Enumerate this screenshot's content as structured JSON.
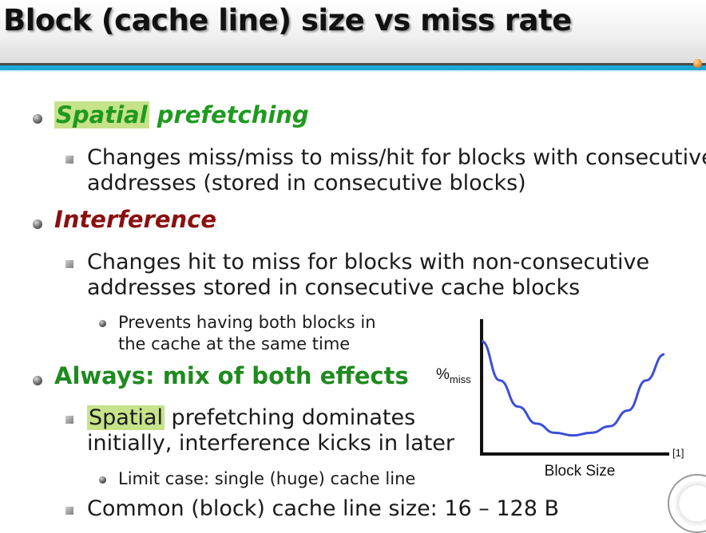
{
  "title": "Block (cache line) size vs miss rate",
  "items": {
    "spatial_highlight": "Spatial",
    "spatial_rest": " prefetching",
    "spatial_sub_line1": "Changes miss/miss to miss/hit for blocks with consecutive",
    "spatial_sub_line2": "addresses (stored in consecutive blocks)",
    "interference": "Interference",
    "interference_sub_line1": "Changes hit to miss for blocks with non-consecutive",
    "interference_sub_line2": "addresses stored in consecutive cache blocks",
    "interference_sub_sub_line1": "Prevents having both blocks in",
    "interference_sub_sub_line2": "the cache at the same time",
    "always": "Always: mix of both effects",
    "always_sub_highlight": "Spatial",
    "always_sub_line1_rest": " prefetching dominates",
    "always_sub_line2": "initially, interference kicks in later",
    "always_sub_sub": "Limit case: single (huge) cache line",
    "common": "Common (block) cache line size: 16 – 128 B"
  },
  "colors": {
    "green": "#1f9a1f",
    "dark_red": "#8b0f0f",
    "highlight": "#c6e38a",
    "accent_blue": "#1da6d6",
    "curve_blue": "#3a4fd8"
  },
  "chart_data": {
    "type": "line",
    "title": "",
    "ylabel_main": "%",
    "ylabel_sub": "miss",
    "xlabel": "Block Size",
    "reference": "[1]",
    "series": [
      {
        "x": [
          0,
          0.1,
          0.2,
          0.3,
          0.4,
          0.5,
          0.6,
          0.7,
          0.8,
          0.9,
          1.0
        ],
        "y": [
          0.85,
          0.55,
          0.35,
          0.22,
          0.15,
          0.13,
          0.15,
          0.2,
          0.32,
          0.55,
          0.75
        ]
      }
    ],
    "xlim": [
      0,
      1
    ],
    "ylim": [
      0,
      1
    ],
    "ticks": false,
    "grid": false
  }
}
